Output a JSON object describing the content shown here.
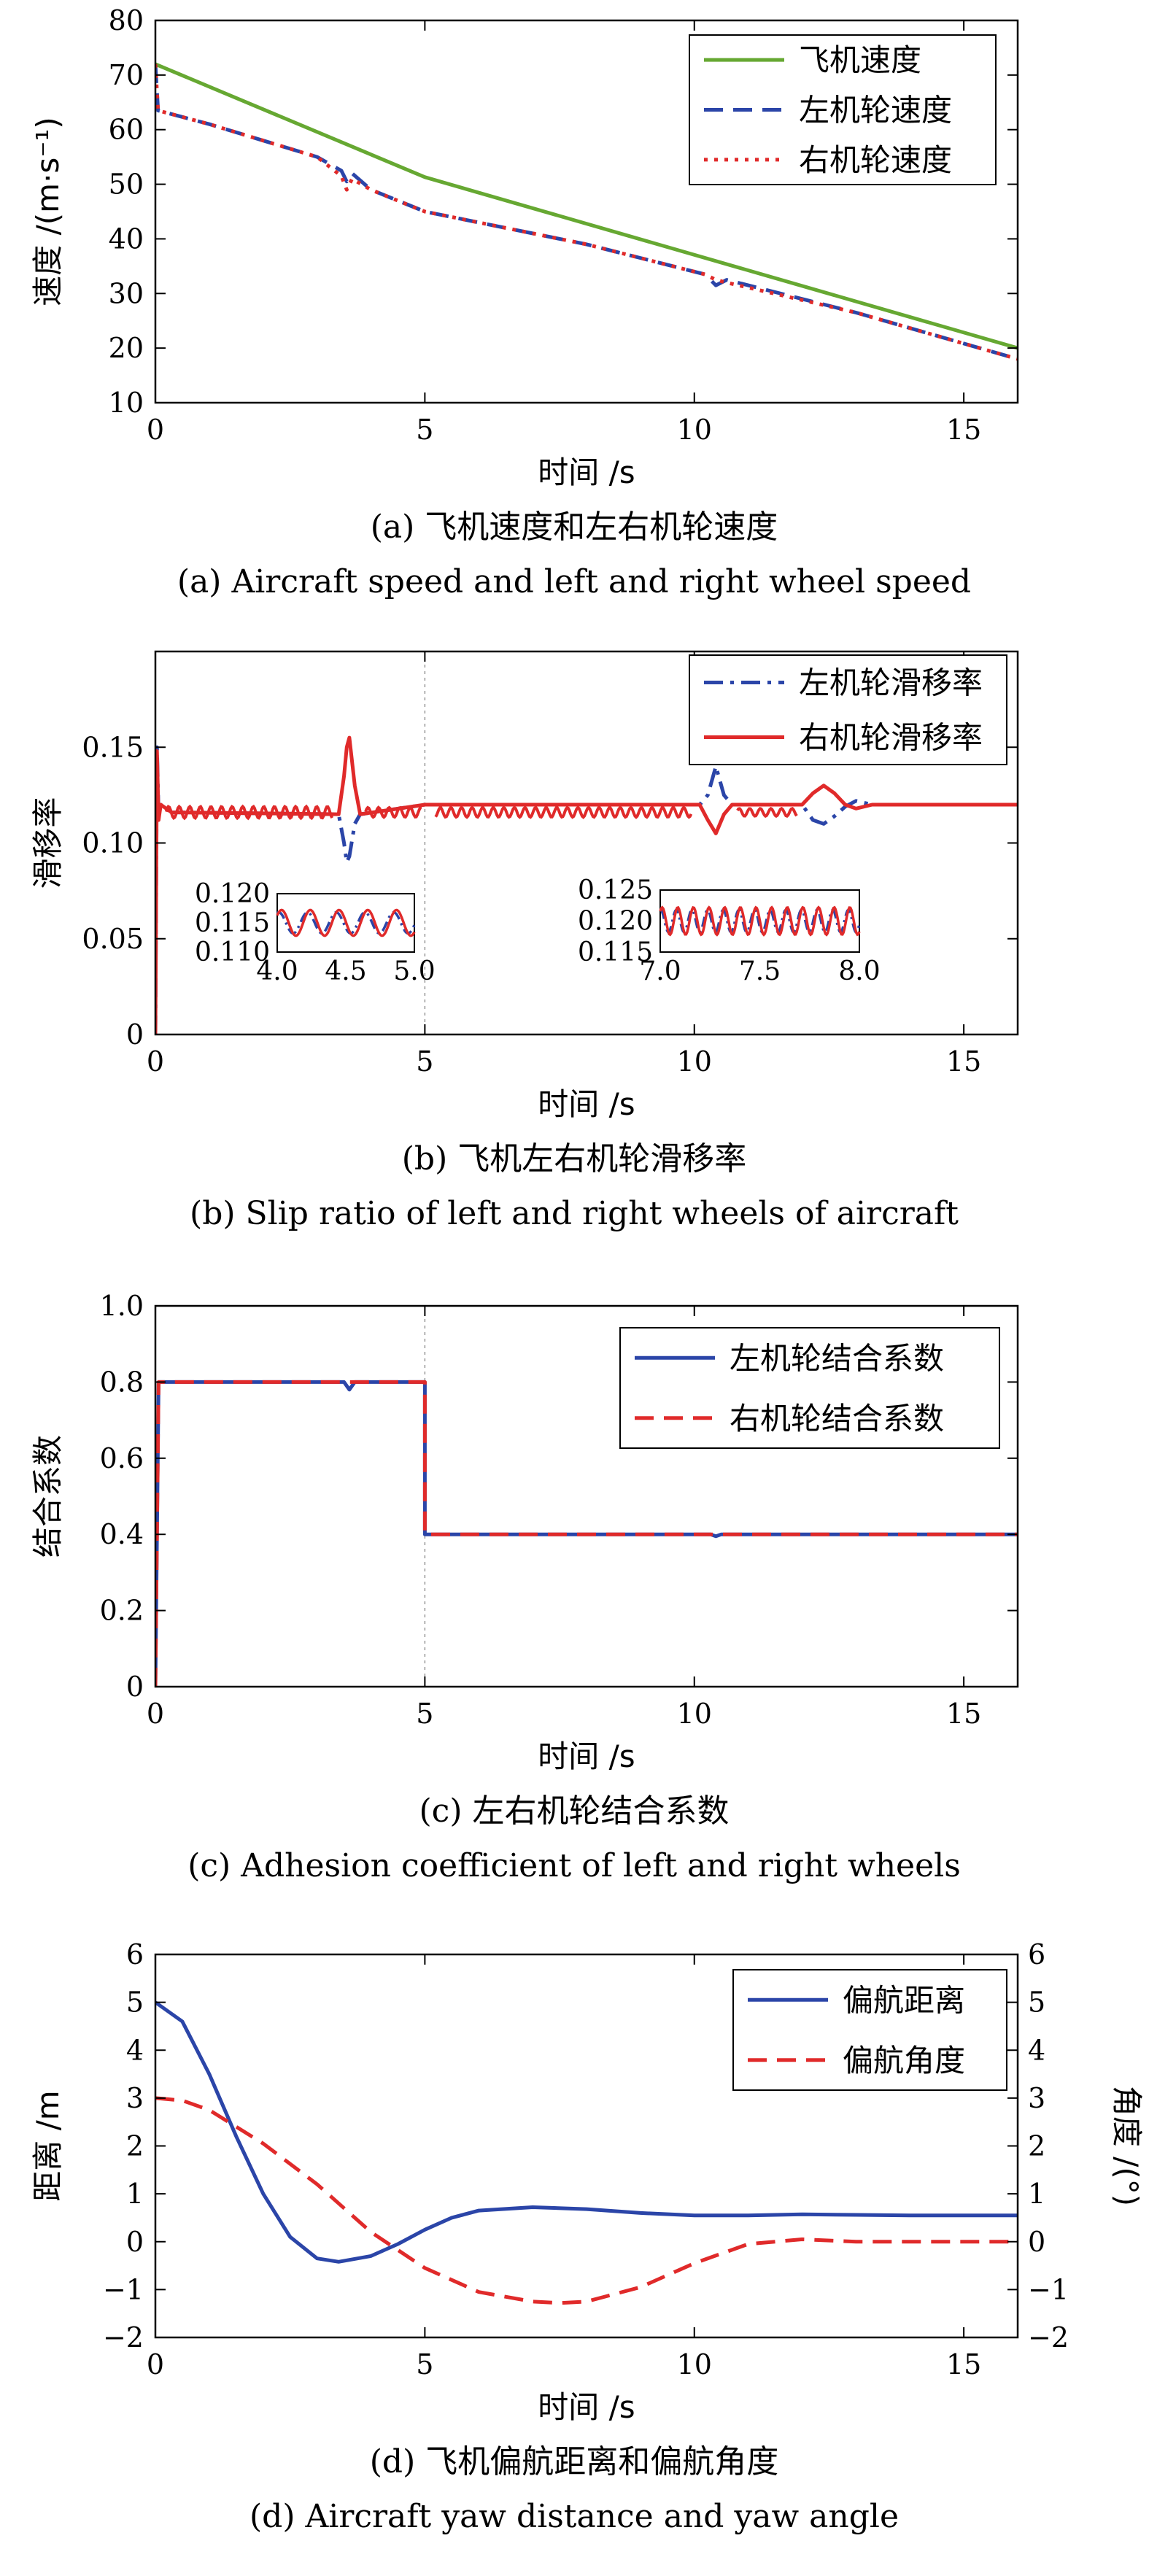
{
  "colors": {
    "green": "#66a832",
    "blue": "#2b45a8",
    "red": "#e02a2a",
    "axis": "#000000"
  },
  "chart_data": [
    {
      "id": "a",
      "type": "line",
      "xlabel": "时间 /s",
      "ylabel": "速度 /(m·s⁻¹)",
      "xlim": [
        0,
        16
      ],
      "ylim": [
        10,
        80
      ],
      "xticks": [
        0,
        5,
        10,
        15
      ],
      "yticks": [
        10,
        20,
        30,
        40,
        50,
        60,
        70,
        80
      ],
      "caption_cn": "(a) 飞机速度和左右机轮速度",
      "caption_en": "(a) Aircraft speed and left and right wheel speed",
      "legend_position": "top-right",
      "series": [
        {
          "name": "飞机速度",
          "style": "solid",
          "color": "green",
          "x": [
            0,
            5,
            16
          ],
          "y": [
            72,
            51.3,
            20
          ]
        },
        {
          "name": "左机轮速度",
          "style": "dash",
          "color": "blue",
          "x": [
            0,
            0.05,
            1,
            2,
            3,
            3.45,
            3.55,
            3.65,
            4,
            5,
            8,
            10.2,
            10.4,
            10.6,
            13,
            16
          ],
          "y": [
            72,
            63.5,
            61,
            58,
            55,
            52.5,
            50.5,
            52,
            49,
            45,
            39,
            33.5,
            31.5,
            32.5,
            26.5,
            18
          ]
        },
        {
          "name": "右机轮速度",
          "style": "dot",
          "color": "red",
          "x": [
            0,
            0.05,
            1,
            2,
            3,
            3.45,
            3.55,
            3.65,
            4,
            5,
            8,
            10.2,
            10.4,
            10.6,
            13,
            16
          ],
          "y": [
            72,
            63.5,
            61,
            58,
            55,
            51.5,
            49,
            51,
            49,
            45,
            39,
            33.5,
            32.5,
            32,
            26.5,
            18
          ]
        }
      ]
    },
    {
      "id": "b",
      "type": "line",
      "xlabel": "时间 /s",
      "ylabel": "滑移率",
      "xlim": [
        0,
        16
      ],
      "ylim": [
        0,
        0.2
      ],
      "xticks": [
        0,
        5,
        10,
        15
      ],
      "yticks": [
        0,
        0.05,
        0.1,
        0.15
      ],
      "ytick_labels": [
        "0",
        "0.05",
        "0.10",
        "0.15"
      ],
      "caption_cn": "(b) 飞机左右机轮滑移率",
      "caption_en": "(b) Slip ratio of left and right wheels of aircraft",
      "legend_position": "top-right",
      "series": [
        {
          "name": "左机轮滑移率",
          "style": "dashdot",
          "color": "blue",
          "x": [
            0,
            0.03,
            0.06,
            0.1,
            0.3,
            3.4,
            3.5,
            3.55,
            3.6,
            3.7,
            3.8,
            5,
            10.1,
            10.25,
            10.4,
            10.55,
            10.7,
            12,
            12.2,
            12.4,
            12.6,
            12.8,
            13,
            13.3,
            16
          ],
          "y": [
            0,
            0.15,
            0.115,
            0.12,
            0.116,
            0.115,
            0.1,
            0.09,
            0.093,
            0.11,
            0.115,
            0.12,
            0.12,
            0.125,
            0.14,
            0.125,
            0.12,
            0.12,
            0.112,
            0.11,
            0.114,
            0.119,
            0.122,
            0.12,
            0.12
          ]
        },
        {
          "name": "右机轮滑移率",
          "style": "solid",
          "color": "red",
          "x": [
            0,
            0.03,
            0.06,
            0.1,
            0.3,
            3.4,
            3.5,
            3.55,
            3.6,
            3.7,
            3.8,
            5,
            10.1,
            10.25,
            10.4,
            10.55,
            10.7,
            12,
            12.2,
            12.4,
            12.6,
            12.8,
            13,
            13.3,
            16
          ],
          "y": [
            0,
            0.148,
            0.112,
            0.12,
            0.116,
            0.115,
            0.135,
            0.15,
            0.155,
            0.13,
            0.115,
            0.12,
            0.12,
            0.112,
            0.105,
            0.115,
            0.12,
            0.12,
            0.126,
            0.13,
            0.126,
            0.12,
            0.118,
            0.12,
            0.12
          ]
        }
      ],
      "insets": [
        {
          "xlim": [
            4.0,
            5.0
          ],
          "ylim": [
            0.11,
            0.12
          ],
          "xticks": [
            4.0,
            4.5,
            5.0
          ],
          "yticks": [
            0.11,
            0.115,
            0.12
          ],
          "xtick_labels": [
            "4.0",
            "4.5",
            "5.0"
          ],
          "ytick_labels": [
            "0.110",
            "0.115",
            "0.120"
          ]
        },
        {
          "xlim": [
            7.0,
            8.0
          ],
          "ylim": [
            0.115,
            0.125
          ],
          "xticks": [
            7.0,
            7.5,
            8.0
          ],
          "yticks": [
            0.115,
            0.12,
            0.125
          ],
          "xtick_labels": [
            "7.0",
            "7.5",
            "8.0"
          ],
          "ytick_labels": [
            "0.115",
            "0.120",
            "0.125"
          ]
        }
      ]
    },
    {
      "id": "c",
      "type": "line",
      "xlabel": "时间 /s",
      "ylabel": "结合系数",
      "xlim": [
        0,
        16
      ],
      "ylim": [
        0,
        1
      ],
      "xticks": [
        0,
        5,
        10,
        15
      ],
      "yticks": [
        0,
        0.2,
        0.4,
        0.6,
        0.8,
        1.0
      ],
      "ytick_labels": [
        "0",
        "0.2",
        "0.4",
        "0.6",
        "0.8",
        "1.0"
      ],
      "caption_cn": "(c) 左右机轮结合系数",
      "caption_en": "(c) Adhesion coefficient of left and right wheels",
      "legend_position": "top-right",
      "series": [
        {
          "name": "左机轮结合系数",
          "style": "solid",
          "color": "blue",
          "x": [
            0,
            0.06,
            3.5,
            3.6,
            3.7,
            5,
            5.0001,
            10.3,
            10.4,
            10.5,
            16
          ],
          "y": [
            0,
            0.8,
            0.8,
            0.78,
            0.8,
            0.8,
            0.4,
            0.4,
            0.395,
            0.4,
            0.4
          ]
        },
        {
          "name": "右机轮结合系数",
          "style": "dash",
          "color": "red",
          "x": [
            0,
            0.06,
            5,
            5.0001,
            16
          ],
          "y": [
            0,
            0.8,
            0.8,
            0.4,
            0.4
          ]
        }
      ]
    },
    {
      "id": "d",
      "type": "line",
      "xlabel": "时间 /s",
      "ylabel": "距离 /m",
      "ylabel_right": "角度 /(°)",
      "xlim": [
        0,
        16
      ],
      "ylim": [
        -2,
        6
      ],
      "ylim_right": [
        -2,
        6
      ],
      "xticks": [
        0,
        5,
        10,
        15
      ],
      "yticks": [
        -2,
        -1,
        0,
        1,
        2,
        3,
        4,
        5,
        6
      ],
      "ytick_labels": [
        "−2",
        "−1",
        "0",
        "1",
        "2",
        "3",
        "4",
        "5",
        "6"
      ],
      "caption_cn": "(d) 飞机偏航距离和偏航角度",
      "caption_en": "(d) Aircraft yaw distance and yaw angle",
      "legend_position": "top-right",
      "series": [
        {
          "name": "偏航距离",
          "style": "solid",
          "color": "blue",
          "x": [
            0,
            0.5,
            1,
            1.5,
            2,
            2.5,
            3,
            3.4,
            4,
            4.5,
            5,
            5.5,
            6,
            7,
            8,
            9,
            10,
            11,
            12,
            13,
            14,
            15,
            16
          ],
          "y": [
            5,
            4.6,
            3.5,
            2.2,
            1.0,
            0.1,
            -0.35,
            -0.42,
            -0.3,
            -0.05,
            0.25,
            0.5,
            0.65,
            0.72,
            0.68,
            0.6,
            0.55,
            0.55,
            0.57,
            0.56,
            0.55,
            0.55,
            0.55
          ]
        },
        {
          "name": "偏航角度",
          "style": "dash",
          "color": "red",
          "x": [
            0,
            0.5,
            1,
            2,
            3,
            4,
            5,
            6,
            7,
            7.5,
            8,
            9,
            10,
            11,
            12,
            13,
            14,
            15,
            16
          ],
          "y": [
            3,
            2.95,
            2.75,
            2.05,
            1.2,
            0.2,
            -0.55,
            -1.05,
            -1.25,
            -1.28,
            -1.25,
            -0.95,
            -0.45,
            -0.05,
            0.05,
            0.0,
            0.0,
            0.0,
            0.0
          ]
        }
      ]
    }
  ]
}
